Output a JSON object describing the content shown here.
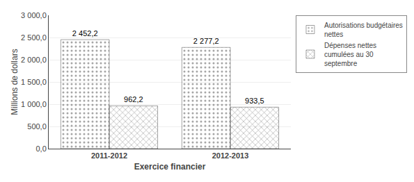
{
  "chart_data": {
    "type": "bar",
    "x_label": "Exercice financier",
    "y_label": "Millions de dollars",
    "categories": [
      "2011-2012",
      "2012-2013"
    ],
    "series": [
      {
        "name": "Autorisations budgétaires\nnettes",
        "color": "#aaaaff",
        "values": [
          2452.2,
          2277.2
        ],
        "value_labels": [
          "2 452,2",
          "2 277,2"
        ]
      },
      {
        "name": "Dépenses nettes\ncumulées au 30\nseptembre",
        "color": "#ffaaaa",
        "values": [
          962.2,
          933.5
        ],
        "value_labels": [
          "962,2",
          "933,5"
        ]
      }
    ],
    "ylim": [
      0,
      3000
    ],
    "yticks": [
      {
        "value": 0,
        "label": "0,0"
      },
      {
        "value": 500,
        "label": "500,0"
      },
      {
        "value": 1000,
        "label": "1 000,0"
      },
      {
        "value": 1500,
        "label": "1 500,0"
      },
      {
        "value": 2000,
        "label": "2 000,0"
      },
      {
        "value": 2500,
        "label": "2 500,0"
      },
      {
        "value": 3000,
        "label": "3 000,0"
      }
    ],
    "grid": true,
    "data_labels": true,
    "legend": "right"
  }
}
